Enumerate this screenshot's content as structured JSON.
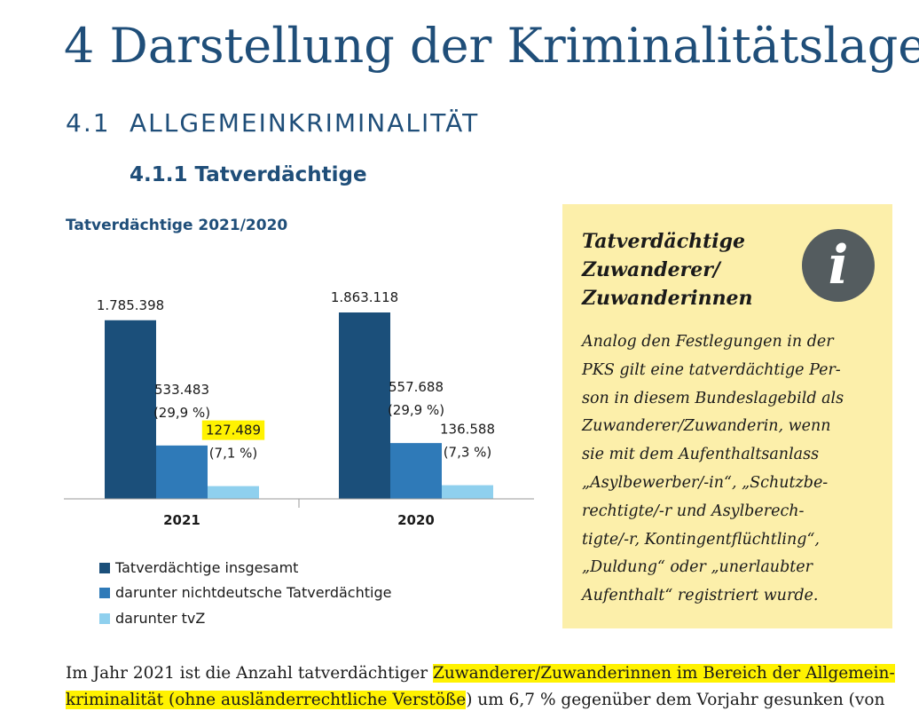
{
  "chapter_title": "4 Darstellung der Kriminalitätslage",
  "section": {
    "number": "4.1",
    "title": "ALLGEMEINKRIMINALITÄT"
  },
  "subsection_title": "4.1.1 Tatverdächtige",
  "chart_data": {
    "type": "bar",
    "title": "Tatverdächtige 2021/2020",
    "categories": [
      "2021",
      "2020"
    ],
    "series": [
      {
        "name": "Tatverdächtige insgesamt",
        "values": [
          1785398,
          1863118
        ],
        "labels": [
          "1.785.398",
          "1.863.118"
        ],
        "shares": [
          "",
          ""
        ],
        "color": "#1b4f7a"
      },
      {
        "name": "darunter nichtdeutsche Tatverdächtige",
        "values": [
          533483,
          557688
        ],
        "labels": [
          "533.483",
          "557.688"
        ],
        "shares": [
          "(29,9 %)",
          "(29,9 %)"
        ],
        "color": "#2f7ab8"
      },
      {
        "name": "darunter tvZ",
        "values": [
          127489,
          136588
        ],
        "labels": [
          "127.489",
          "136.588"
        ],
        "shares": [
          "(7,1 %)",
          "(7,3 %)"
        ],
        "color": "#8fd0ee"
      }
    ],
    "highlighted_label": "127.489",
    "highlight_color": "#fff200",
    "grid": false,
    "legend_position": "bottom"
  },
  "info_box": {
    "title_lines": [
      "Tatverdächtige",
      "Zuwanderer/",
      "Zuwanderinnen"
    ],
    "icon": "info-icon",
    "icon_glyph": "i",
    "body_lines": [
      "Analog den Festlegungen in der",
      "PKS gilt eine tatverdächtige Per-",
      "son in diesem Bundeslagebild als",
      "Zuwanderer/Zuwanderin, wenn",
      "sie mit dem Aufenthaltsanlass",
      "„Asylbewerber/-in“, „Schutzbe-",
      "rechtigte/-r und Asylberech-",
      "tigte/-r, Kontingentflüchtling“,",
      "„Duldung“ oder „unerlaubter",
      "Aufenthalt“ registriert wurde."
    ],
    "background": "#fcefaa"
  },
  "body": {
    "line1_a": "Im Jahr 2021 ist die Anzahl tatverdächtiger ",
    "line1_b": "Zuwanderer/Zuwanderinnen im Bereich der Allgemein-",
    "line2_a": "kriminalität (ohne ausländerrechtliche Verstöße",
    "line2_b": ") um 6,7 % gegenüber dem Vorjahr gesunken (von"
  }
}
